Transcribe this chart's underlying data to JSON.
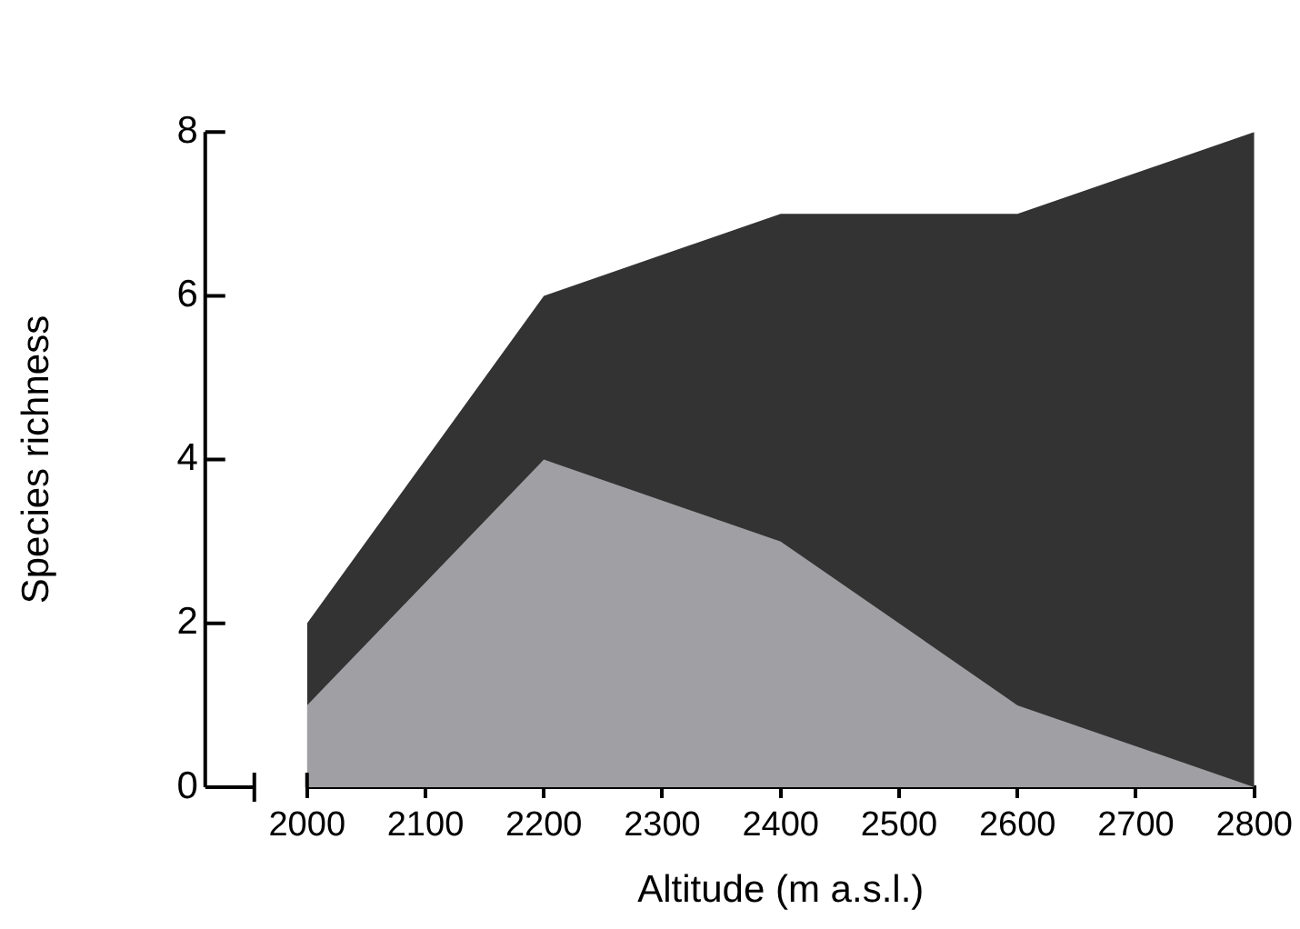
{
  "chart_data": {
    "type": "area",
    "xlabel": "Altitude (m a.s.l.)",
    "ylabel": "Species richness",
    "x": [
      2000,
      2200,
      2400,
      2600,
      2800
    ],
    "series": [
      {
        "color": "#333333",
        "values": [
          2,
          6,
          7,
          7,
          8
        ]
      },
      {
        "color": "#a09fa4",
        "values": [
          1,
          4,
          3,
          1,
          0
        ]
      }
    ],
    "xlim": [
      2000,
      2800
    ],
    "xticks": [
      2000,
      2100,
      2200,
      2300,
      2400,
      2500,
      2600,
      2700,
      2800
    ],
    "ylim": [
      0,
      8
    ],
    "yticks": [
      0,
      2,
      4,
      6,
      8
    ],
    "grid": false,
    "legend": false
  }
}
